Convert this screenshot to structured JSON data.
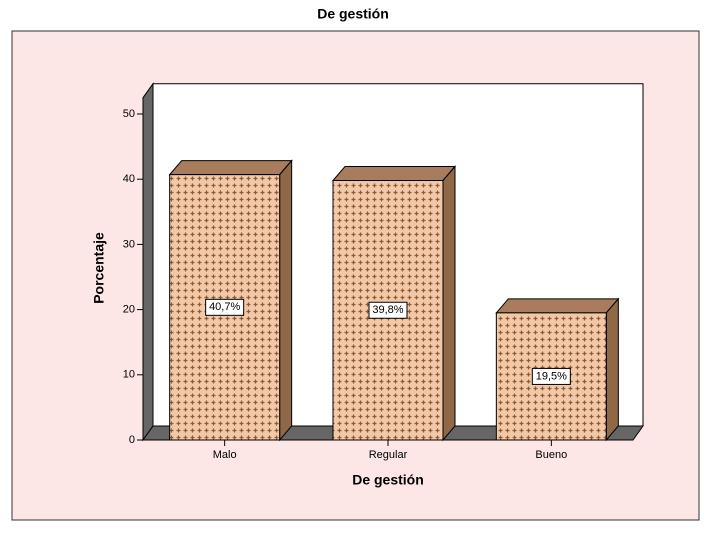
{
  "chart_data": {
    "type": "bar3d",
    "title": "De gestión",
    "x_label": "De gestión",
    "y_label": "Porcentaje",
    "categories": [
      "Malo",
      "Regular",
      "Bueno"
    ],
    "values": [
      40.7,
      39.8,
      19.5
    ],
    "value_labels": [
      "40,7%",
      "39,8%",
      "19,5%"
    ],
    "color": "#f2c8a6",
    "ylim": [
      0,
      52.5
    ],
    "yticks": [
      0,
      10,
      20,
      30,
      40,
      50
    ]
  }
}
